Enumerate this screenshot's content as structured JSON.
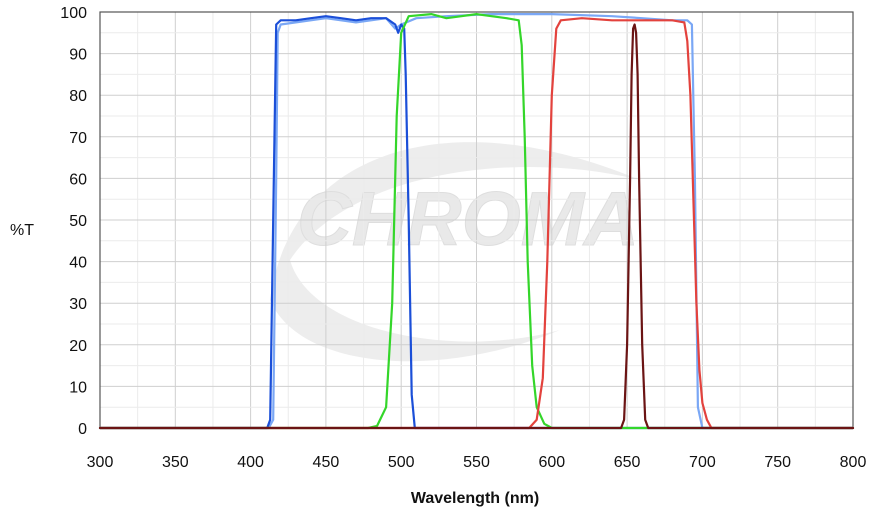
{
  "chart_data": {
    "type": "line",
    "xlabel": "Wavelength (nm)",
    "ylabel": "%T",
    "xlim": [
      300,
      800
    ],
    "ylim": [
      0,
      100
    ],
    "x_ticks": [
      300,
      350,
      400,
      450,
      500,
      550,
      600,
      650,
      700,
      750,
      800
    ],
    "y_ticks": [
      0,
      10,
      20,
      30,
      40,
      50,
      60,
      70,
      80,
      90,
      100
    ],
    "grid": true,
    "legend": "none",
    "watermark": "CHROMA",
    "series": [
      {
        "color": "#7aa7f5",
        "points": [
          [
            300,
            0
          ],
          [
            412,
            0
          ],
          [
            415,
            2
          ],
          [
            417,
            60
          ],
          [
            418,
            95
          ],
          [
            420,
            97
          ],
          [
            430,
            97.5
          ],
          [
            440,
            98
          ],
          [
            450,
            98.5
          ],
          [
            460,
            98
          ],
          [
            470,
            97.5
          ],
          [
            480,
            98
          ],
          [
            490,
            98.5
          ],
          [
            496,
            96
          ],
          [
            500,
            97
          ],
          [
            510,
            98.5
          ],
          [
            530,
            99
          ],
          [
            560,
            99.5
          ],
          [
            600,
            99.5
          ],
          [
            640,
            99
          ],
          [
            660,
            98.5
          ],
          [
            680,
            98
          ],
          [
            690,
            98
          ],
          [
            693,
            97
          ],
          [
            695,
            60
          ],
          [
            697,
            5
          ],
          [
            700,
            0
          ],
          [
            800,
            0
          ]
        ]
      },
      {
        "color": "#1b4fd8",
        "points": [
          [
            300,
            0
          ],
          [
            411,
            0
          ],
          [
            413,
            2
          ],
          [
            415,
            50
          ],
          [
            417,
            97
          ],
          [
            420,
            98
          ],
          [
            430,
            98
          ],
          [
            440,
            98.5
          ],
          [
            450,
            99
          ],
          [
            460,
            98.5
          ],
          [
            470,
            98
          ],
          [
            480,
            98.5
          ],
          [
            490,
            98.5
          ],
          [
            496,
            97
          ],
          [
            498,
            95
          ],
          [
            500,
            97
          ],
          [
            502,
            96
          ],
          [
            503,
            85
          ],
          [
            505,
            50
          ],
          [
            507,
            8
          ],
          [
            509,
            0
          ],
          [
            800,
            0
          ]
        ]
      },
      {
        "color": "#34d62a",
        "points": [
          [
            300,
            0
          ],
          [
            478,
            0
          ],
          [
            484,
            0.5
          ],
          [
            490,
            5
          ],
          [
            494,
            30
          ],
          [
            497,
            75
          ],
          [
            500,
            95
          ],
          [
            505,
            99
          ],
          [
            520,
            99.5
          ],
          [
            530,
            98.5
          ],
          [
            540,
            99
          ],
          [
            550,
            99.5
          ],
          [
            560,
            99
          ],
          [
            570,
            98.5
          ],
          [
            578,
            98
          ],
          [
            580,
            92
          ],
          [
            582,
            70
          ],
          [
            584,
            40
          ],
          [
            587,
            15
          ],
          [
            590,
            5
          ],
          [
            595,
            1
          ],
          [
            600,
            0
          ],
          [
            800,
            0
          ]
        ]
      },
      {
        "color": "#e3423d",
        "points": [
          [
            300,
            0
          ],
          [
            585,
            0
          ],
          [
            590,
            2
          ],
          [
            594,
            12
          ],
          [
            597,
            40
          ],
          [
            600,
            80
          ],
          [
            603,
            96
          ],
          [
            606,
            98
          ],
          [
            620,
            98.5
          ],
          [
            640,
            98
          ],
          [
            660,
            98
          ],
          [
            680,
            98
          ],
          [
            688,
            97.5
          ],
          [
            690,
            93
          ],
          [
            692,
            80
          ],
          [
            694,
            55
          ],
          [
            696,
            30
          ],
          [
            698,
            14
          ],
          [
            700,
            6
          ],
          [
            703,
            2
          ],
          [
            706,
            0
          ],
          [
            800,
            0
          ]
        ]
      },
      {
        "color": "#6b1414",
        "points": [
          [
            300,
            0
          ],
          [
            646,
            0
          ],
          [
            648,
            2
          ],
          [
            650,
            20
          ],
          [
            652,
            60
          ],
          [
            653,
            85
          ],
          [
            654,
            96
          ],
          [
            655,
            97
          ],
          [
            656,
            95
          ],
          [
            657,
            85
          ],
          [
            658,
            60
          ],
          [
            660,
            20
          ],
          [
            662,
            2
          ],
          [
            664,
            0
          ],
          [
            800,
            0
          ]
        ]
      }
    ]
  }
}
